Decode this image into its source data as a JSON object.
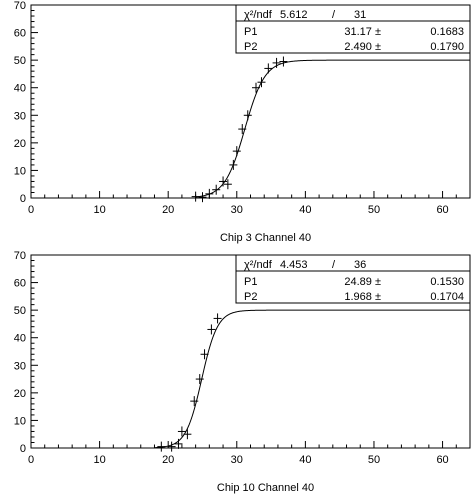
{
  "chart_data": [
    {
      "type": "scatter",
      "title": "",
      "caption": "Chip  3 Channel  40",
      "xlim": [
        0,
        64
      ],
      "ylim": [
        0,
        70
      ],
      "x_ticks": [
        0,
        10,
        20,
        30,
        40,
        50,
        60
      ],
      "y_ticks": [
        0,
        10,
        20,
        30,
        40,
        50,
        60,
        70
      ],
      "grid": false,
      "points": [
        {
          "x": 24,
          "y": 0.5
        },
        {
          "x": 25,
          "y": 0.3
        },
        {
          "x": 26,
          "y": 1.5
        },
        {
          "x": 27,
          "y": 3
        },
        {
          "x": 28,
          "y": 6
        },
        {
          "x": 28.7,
          "y": 5
        },
        {
          "x": 29.5,
          "y": 12
        },
        {
          "x": 30,
          "y": 17
        },
        {
          "x": 30.8,
          "y": 25
        },
        {
          "x": 31.6,
          "y": 30
        },
        {
          "x": 32.8,
          "y": 40
        },
        {
          "x": 33.6,
          "y": 42
        },
        {
          "x": 34.6,
          "y": 47
        },
        {
          "x": 35.8,
          "y": 49
        },
        {
          "x": 36.8,
          "y": 49.5
        }
      ],
      "fit": {
        "center": 31.17,
        "width": 2.49,
        "plateau": 50,
        "xmin": 24,
        "xmax": 64
      },
      "stats": {
        "chi2_label": "χ²/ndf",
        "chi2": "5.612",
        "sep": "/",
        "ndf": "31",
        "rows": [
          {
            "name": "P1",
            "value": "31.17 ±",
            "error": "0.1683"
          },
          {
            "name": "P2",
            "value": "2.490 ±",
            "error": "0.1790"
          }
        ]
      }
    },
    {
      "type": "scatter",
      "title": "",
      "caption": "Chip  10 Channel  40",
      "xlim": [
        0,
        64
      ],
      "ylim": [
        0,
        70
      ],
      "x_ticks": [
        0,
        10,
        20,
        30,
        40,
        50,
        60
      ],
      "y_ticks": [
        0,
        10,
        20,
        30,
        40,
        50,
        60,
        70
      ],
      "grid": false,
      "points": [
        {
          "x": 19,
          "y": 0.5
        },
        {
          "x": 20.5,
          "y": 0.5
        },
        {
          "x": 21.5,
          "y": 1.5
        },
        {
          "x": 22,
          "y": 6
        },
        {
          "x": 22.8,
          "y": 5
        },
        {
          "x": 23.8,
          "y": 17
        },
        {
          "x": 24.6,
          "y": 25
        },
        {
          "x": 25.3,
          "y": 34
        },
        {
          "x": 26.3,
          "y": 43
        },
        {
          "x": 27.2,
          "y": 47
        }
      ],
      "fit": {
        "center": 24.89,
        "width": 1.968,
        "plateau": 50,
        "xmin": 18,
        "xmax": 64
      },
      "stats": {
        "chi2_label": "χ²/ndf",
        "chi2": "4.453",
        "sep": "/",
        "ndf": "36",
        "rows": [
          {
            "name": "P1",
            "value": "24.89 ±",
            "error": "0.1530"
          },
          {
            "name": "P2",
            "value": "1.968 ±",
            "error": "0.1704"
          }
        ]
      }
    }
  ]
}
